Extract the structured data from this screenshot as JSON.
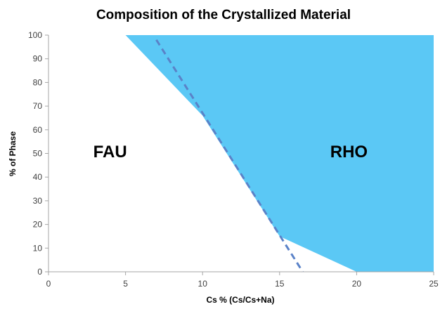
{
  "chart_data": {
    "type": "area",
    "title": "Composition of the Crystallized Material",
    "xlabel": "Cs % (Cs/Cs+Na)",
    "ylabel": "% of Phase",
    "xlim": [
      0,
      25
    ],
    "ylim": [
      0,
      100
    ],
    "x_ticks": [
      0,
      5,
      10,
      15,
      20,
      25
    ],
    "y_ticks": [
      0,
      10,
      20,
      30,
      40,
      50,
      60,
      70,
      80,
      90,
      100
    ],
    "grid": false,
    "legend": "none",
    "boundary": {
      "x": [
        5,
        10,
        15,
        20,
        25
      ],
      "y": [
        100,
        66,
        15,
        0,
        0
      ]
    },
    "fit_line": {
      "x": [
        7,
        16.5
      ],
      "y": [
        98,
        0
      ],
      "style": "dashed"
    },
    "regions": [
      {
        "label": "FAU",
        "x": 4,
        "y": 51
      },
      {
        "label": "RHO",
        "x": 19.5,
        "y": 51
      }
    ],
    "colors": {
      "rho_fill": "#5bc8f5",
      "fit_line": "#5a82c8",
      "axis": "#a6a6a6"
    }
  }
}
